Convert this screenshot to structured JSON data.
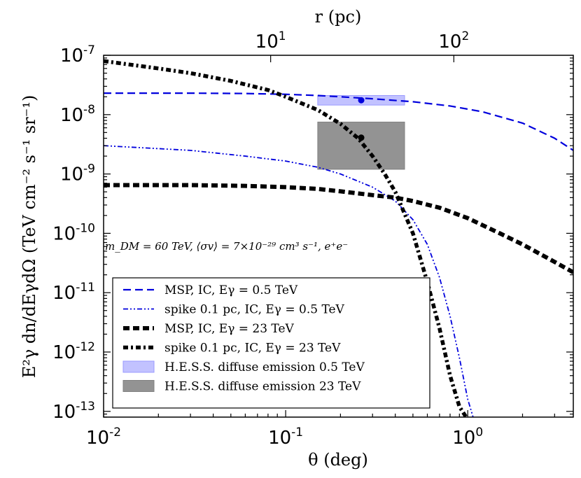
{
  "chart_data": {
    "type": "line",
    "xlabel": "θ (deg)",
    "ylabel": "E²γ dn/dEγdΩ (TeV cm⁻² s⁻¹ sr⁻¹)",
    "top_xlabel": "r (pc)",
    "xscale": "log",
    "yscale": "log",
    "xlim": [
      0.01,
      3.8
    ],
    "ylim": [
      8e-14,
      1e-07
    ],
    "x_ticks": [
      {
        "value": 0.01,
        "base": "10",
        "exp": "-2"
      },
      {
        "value": 0.1,
        "base": "10",
        "exp": "-1"
      },
      {
        "value": 1,
        "base": "10",
        "exp": "0"
      }
    ],
    "y_ticks": [
      {
        "value": 1e-07,
        "base": "10",
        "exp": "-7"
      },
      {
        "value": 1e-08,
        "base": "10",
        "exp": "-8"
      },
      {
        "value": 1e-09,
        "base": "10",
        "exp": "-9"
      },
      {
        "value": 1e-10,
        "base": "10",
        "exp": "-10"
      },
      {
        "value": 1e-11,
        "base": "10",
        "exp": "-11"
      },
      {
        "value": 1e-12,
        "base": "10",
        "exp": "-12"
      },
      {
        "value": 1e-13,
        "base": "10",
        "exp": "-13"
      }
    ],
    "top_ticks": [
      {
        "theta": 0.0827,
        "base": "10",
        "exp": "1"
      },
      {
        "theta": 0.8387,
        "base": "10",
        "exp": "2"
      }
    ],
    "annotation": "m_DM = 60 TeV, ⟨σv⟩ = 7×10⁻²⁹ cm³ s⁻¹, e⁺e⁻",
    "series": [
      {
        "name": "MSP, IC, Eγ = 0.5 TeV",
        "color": "#0000dd",
        "style": "dashed",
        "x": [
          0.01,
          0.03,
          0.06,
          0.1,
          0.15,
          0.2,
          0.3,
          0.5,
          0.8,
          1.2,
          2.0,
          3.0,
          3.8
        ],
        "y": [
          2.3e-08,
          2.3e-08,
          2.27e-08,
          2.2e-08,
          2.1e-08,
          2e-08,
          1.85e-08,
          1.65e-08,
          1.4e-08,
          1.12e-08,
          7.2e-09,
          4e-09,
          2.5e-09
        ]
      },
      {
        "name": "spike 0.1 pc, IC, Eγ = 0.5 TeV",
        "color": "#0000dd",
        "style": "dashdot-thin",
        "x": [
          0.01,
          0.03,
          0.06,
          0.1,
          0.15,
          0.2,
          0.3,
          0.4,
          0.5,
          0.6,
          0.7,
          0.8,
          0.9,
          1.0,
          1.07
        ],
        "y": [
          3e-09,
          2.5e-09,
          2e-09,
          1.65e-09,
          1.3e-09,
          1e-09,
          6e-10,
          3.5e-10,
          1.7e-10,
          6.5e-11,
          1.8e-11,
          4e-12,
          8e-13,
          1.6e-13,
          8e-14
        ]
      },
      {
        "name": "MSP, IC, Eγ = 23 TeV",
        "color": "#000000",
        "style": "thick-dashed",
        "x": [
          0.01,
          0.03,
          0.06,
          0.1,
          0.15,
          0.2,
          0.3,
          0.4,
          0.5,
          0.7,
          1.0,
          1.5,
          2.0,
          3.0,
          3.8
        ],
        "y": [
          6.5e-10,
          6.5e-10,
          6.3e-10,
          6e-10,
          5.6e-10,
          5.1e-10,
          4.4e-10,
          4e-10,
          3.5e-10,
          2.7e-10,
          1.8e-10,
          1e-10,
          6.5e-11,
          3.3e-11,
          2.2e-11
        ]
      },
      {
        "name": "spike 0.1 pc, IC, Eγ = 23 TeV",
        "color": "#000000",
        "style": "thick-dashdot",
        "x": [
          0.01,
          0.02,
          0.03,
          0.05,
          0.08,
          0.1,
          0.15,
          0.2,
          0.25,
          0.3,
          0.35,
          0.4,
          0.5,
          0.6,
          0.7,
          0.8,
          0.9,
          0.98
        ],
        "y": [
          8e-08,
          6e-08,
          5e-08,
          3.7e-08,
          2.6e-08,
          2e-08,
          1.2e-08,
          7e-09,
          4e-09,
          2e-09,
          1e-09,
          5e-10,
          1e-10,
          1.5e-11,
          2.5e-12,
          4e-13,
          1.2e-13,
          8e-14
        ]
      }
    ],
    "regions": [
      {
        "name": "H.E.S.S. diffuse emission 0.5 TeV",
        "color": "#9999ff",
        "opacity": 0.6,
        "x": [
          0.15,
          0.45
        ],
        "y": [
          1.45e-08,
          2.1e-08
        ],
        "point": {
          "x": 0.26,
          "y": 1.75e-08,
          "color": "#0000dd"
        }
      },
      {
        "name": "H.E.S.S. diffuse emission 23 TeV",
        "color": "#808080",
        "opacity": 0.85,
        "x": [
          0.15,
          0.45
        ],
        "y": [
          1.2e-09,
          7.5e-09
        ],
        "point": {
          "x": 0.26,
          "y": 4.1e-09,
          "color": "#000000"
        }
      }
    ],
    "legend_position": "lower-left"
  }
}
